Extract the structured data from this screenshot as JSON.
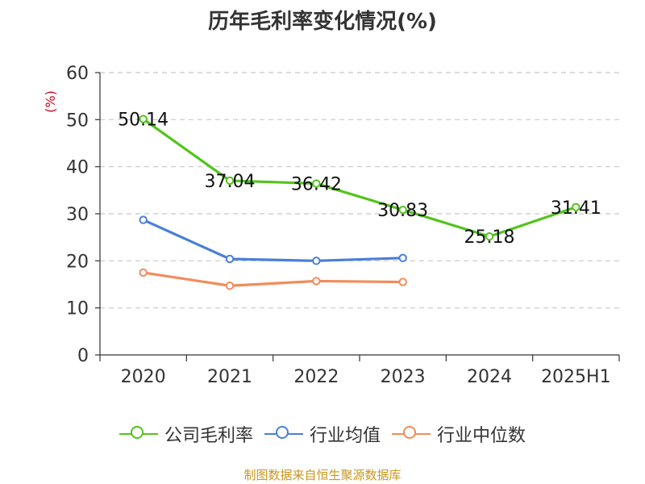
{
  "chart_data": {
    "type": "line",
    "title": "历年毛利率变化情况(%)",
    "unit_label": "(%)",
    "categories": [
      "2020",
      "2021",
      "2022",
      "2023",
      "2024",
      "2025H1"
    ],
    "ylim": [
      0,
      60
    ],
    "yticks": [
      0,
      10,
      20,
      30,
      40,
      50,
      60
    ],
    "grid": true,
    "legend_position": "bottom",
    "series": [
      {
        "name": "公司毛利率",
        "color": "#52c41a",
        "values": [
          50.14,
          37.04,
          36.42,
          30.83,
          25.18,
          31.41
        ],
        "labels": [
          "50.14",
          "37.04",
          "36.42",
          "30.83",
          "25.18",
          "31.41"
        ]
      },
      {
        "name": "行业均值",
        "color": "#4a7fd8",
        "values": [
          28.7,
          20.4,
          20.0,
          20.6,
          null,
          null
        ]
      },
      {
        "name": "行业中位数",
        "color": "#f28c5a",
        "values": [
          17.5,
          14.7,
          15.7,
          15.5,
          null,
          null
        ]
      }
    ]
  },
  "source": "制图数据来自恒生聚源数据库"
}
